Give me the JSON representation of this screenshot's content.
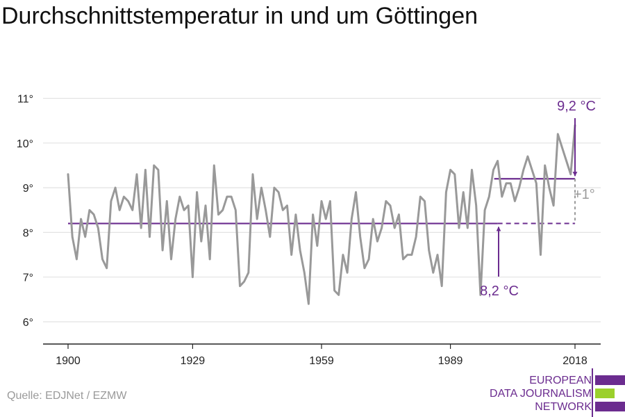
{
  "title": "Durchschnittstemperatur in und um Göttingen",
  "source": "Quelle: EDJNet / EZMW",
  "logo": {
    "lines": [
      "EUROPEAN",
      "DATA JOURNALISM",
      "NETWORK"
    ]
  },
  "colors": {
    "series": "#999999",
    "accent": "#6b2c8f",
    "grid": "#e2e2e2",
    "axis": "#222222",
    "diff": "#9a9a9a",
    "logo_green": "#9bd02c"
  },
  "chart_data": {
    "type": "line",
    "title": "Durchschnittstemperatur in und um Göttingen",
    "xlabel": "",
    "ylabel": "",
    "xlim": [
      1900,
      2018
    ],
    "ylim": [
      5.5,
      11.5
    ],
    "y_ticks": [
      6,
      7,
      8,
      9,
      10,
      11
    ],
    "y_tick_labels": [
      "6°",
      "7°",
      "8°",
      "9°",
      "10°",
      "11°"
    ],
    "x_ticks": [
      1900,
      1929,
      1959,
      1989,
      2018
    ],
    "x_tick_labels": [
      "1900",
      "1929",
      "1959",
      "1989",
      "2018"
    ],
    "grid": true,
    "series": [
      {
        "x": [
          1900,
          1901,
          1902,
          1903,
          1904,
          1905,
          1906,
          1907,
          1908,
          1909,
          1910,
          1911,
          1912,
          1913,
          1914,
          1915,
          1916,
          1917,
          1918,
          1919,
          1920,
          1921,
          1922,
          1923,
          1924,
          1925,
          1926,
          1927,
          1928,
          1929,
          1930,
          1931,
          1932,
          1933,
          1934,
          1935,
          1936,
          1937,
          1938,
          1939,
          1940,
          1941,
          1942,
          1943,
          1944,
          1945,
          1946,
          1947,
          1948,
          1949,
          1950,
          1951,
          1952,
          1953,
          1954,
          1955,
          1956,
          1957,
          1958,
          1959,
          1960,
          1961,
          1962,
          1963,
          1964,
          1965,
          1966,
          1967,
          1968,
          1969,
          1970,
          1971,
          1972,
          1973,
          1974,
          1975,
          1976,
          1977,
          1978,
          1979,
          1980,
          1981,
          1982,
          1983,
          1984,
          1985,
          1986,
          1987,
          1988,
          1989,
          1990,
          1991,
          1992,
          1993,
          1994,
          1995,
          1996,
          1997,
          1998,
          1999,
          2000,
          2001,
          2002,
          2003,
          2004,
          2005,
          2006,
          2007,
          2008,
          2009,
          2010,
          2011,
          2012,
          2013,
          2014,
          2015,
          2016,
          2017,
          2018
        ],
        "values": [
          9.3,
          7.9,
          7.4,
          8.3,
          7.9,
          8.5,
          8.4,
          8.1,
          7.4,
          7.2,
          8.7,
          9.0,
          8.5,
          8.8,
          8.7,
          8.5,
          9.3,
          8.1,
          9.4,
          7.9,
          9.5,
          9.4,
          7.6,
          8.7,
          7.4,
          8.3,
          8.8,
          8.5,
          8.6,
          7.0,
          8.9,
          7.8,
          8.6,
          7.4,
          9.5,
          8.4,
          8.5,
          8.8,
          8.8,
          8.5,
          6.8,
          6.9,
          7.1,
          9.3,
          8.3,
          9.0,
          8.5,
          7.9,
          9.0,
          8.9,
          8.5,
          8.6,
          7.5,
          8.4,
          7.6,
          7.1,
          6.4,
          8.4,
          7.7,
          8.7,
          8.3,
          8.7,
          6.7,
          6.6,
          7.5,
          7.1,
          8.3,
          8.9,
          7.9,
          7.2,
          7.4,
          8.3,
          7.8,
          8.1,
          8.7,
          8.6,
          8.1,
          8.4,
          7.4,
          7.5,
          7.5,
          7.9,
          8.8,
          8.7,
          7.6,
          7.1,
          7.5,
          6.8,
          8.9,
          9.4,
          9.3,
          8.1,
          8.9,
          8.1,
          9.4,
          8.6,
          6.6,
          8.5,
          8.8,
          9.4,
          9.6,
          8.8,
          9.1,
          9.1,
          8.7,
          9.0,
          9.4,
          9.7,
          9.4,
          9.1,
          7.5,
          9.5,
          9.0,
          8.6,
          10.2,
          9.9,
          9.6,
          9.3,
          10.4
        ]
      }
    ],
    "reference_lines": [
      {
        "y": 8.2,
        "x_start": 1900,
        "x_end": 2000,
        "x_dashed_end": 2018
      },
      {
        "y": 9.2,
        "x_start": 2000,
        "x_end": 2018
      }
    ],
    "annotations": {
      "high": "9,2 °C",
      "low": "8,2 °C",
      "diff": "+1°"
    }
  }
}
